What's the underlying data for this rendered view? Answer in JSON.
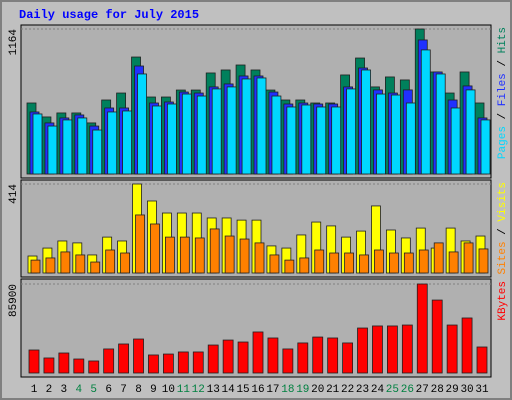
{
  "chart_data": [
    {
      "type": "bar",
      "title": "Daily usage for July 2015",
      "ylim": [
        0,
        1164
      ],
      "yticks": [
        1164
      ],
      "legend_separator": " / ",
      "series": [
        {
          "name": "Hits",
          "color": "#00805c",
          "values": [
            570,
            458,
            490,
            490,
            410,
            594,
            650,
            939,
            618,
            618,
            674,
            674,
            811,
            835,
            875,
            835,
            674,
            594,
            594,
            570,
            570,
            795,
            931,
            699,
            779,
            755,
            1164,
            819,
            650,
            819,
            570
          ]
        },
        {
          "name": "Files",
          "color": "#2030ff",
          "values": [
            498,
            410,
            450,
            474,
            385,
            530,
            530,
            867,
            570,
            578,
            658,
            650,
            699,
            723,
            787,
            787,
            658,
            562,
            570,
            562,
            562,
            699,
            851,
            675,
            650,
            675,
            1076,
            819,
            594,
            707,
            450
          ]
        },
        {
          "name": "Pages",
          "color": "#00d8ff",
          "values": [
            482,
            385,
            434,
            450,
            353,
            498,
            506,
            803,
            546,
            562,
            642,
            626,
            683,
            699,
            763,
            771,
            626,
            538,
            554,
            538,
            538,
            683,
            835,
            642,
            634,
            570,
            996,
            803,
            530,
            675,
            434
          ]
        }
      ]
    },
    {
      "type": "bar",
      "ylim": [
        0,
        414
      ],
      "yticks": [
        414
      ],
      "legend_separator": " / ",
      "series": [
        {
          "name": "Visits",
          "color": "#ffff00",
          "values": [
            79,
            116,
            149,
            140,
            84,
            167,
            149,
            414,
            335,
            279,
            279,
            279,
            256,
            256,
            246,
            246,
            126,
            116,
            177,
            237,
            219,
            167,
            195,
            312,
            200,
            163,
            209,
            116,
            209,
            149,
            172
          ]
        },
        {
          "name": "Sites",
          "color": "#ff8000",
          "values": [
            60,
            70,
            98,
            84,
            51,
            107,
            93,
            270,
            228,
            167,
            167,
            163,
            205,
            172,
            158,
            140,
            84,
            60,
            70,
            107,
            93,
            93,
            84,
            107,
            93,
            93,
            107,
            140,
            98,
            140,
            112
          ]
        }
      ]
    },
    {
      "type": "bar",
      "ylim": [
        0,
        85900
      ],
      "yticks": [
        85900
      ],
      "categories": [
        "1",
        "2",
        "3",
        "4",
        "5",
        "6",
        "7",
        "8",
        "9",
        "10",
        "11",
        "12",
        "13",
        "14",
        "15",
        "16",
        "17",
        "18",
        "19",
        "20",
        "21",
        "22",
        "23",
        "24",
        "25",
        "26",
        "27",
        "28",
        "29",
        "30",
        "31"
      ],
      "category_colors": [
        "#000000",
        "#000000",
        "#000000",
        "#008040",
        "#008040",
        "#000000",
        "#000000",
        "#000000",
        "#000000",
        "#000000",
        "#008040",
        "#008040",
        "#000000",
        "#000000",
        "#000000",
        "#000000",
        "#000000",
        "#008040",
        "#008040",
        "#000000",
        "#000000",
        "#000000",
        "#000000",
        "#000000",
        "#008040",
        "#008040",
        "#000000",
        "#000000",
        "#000000",
        "#000000",
        "#000000"
      ],
      "series": [
        {
          "name": "KBytes",
          "color": "#ff0000",
          "values": [
            22200,
            14500,
            19300,
            13500,
            11600,
            23200,
            28000,
            32800,
            17400,
            18300,
            20300,
            20300,
            27000,
            31800,
            29900,
            39600,
            33800,
            23200,
            29000,
            34700,
            33800,
            29000,
            43400,
            45400,
            45400,
            46300,
            85900,
            70400,
            46300,
            53100,
            25100
          ]
        }
      ]
    }
  ]
}
